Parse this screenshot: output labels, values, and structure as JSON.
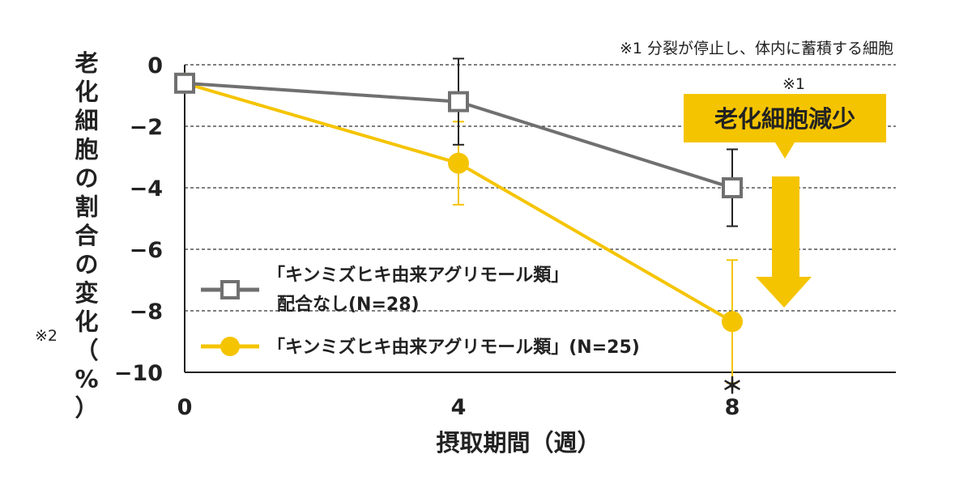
{
  "chart_data": {
    "type": "line",
    "title": "",
    "xlabel": "摂取期間（週）",
    "ylabel": "老化細胞の割合の変化（%）",
    "ylabel_note": "※2",
    "x": [
      0,
      4,
      8
    ],
    "x_tick_labels": [
      "0",
      "4",
      "8"
    ],
    "xlim": [
      0,
      10.5
    ],
    "ylim": [
      -10,
      0
    ],
    "y_ticks": [
      0,
      -2,
      -4,
      -6,
      -8,
      -10
    ],
    "y_tick_labels": [
      "0",
      "−2",
      "−4",
      "−6",
      "−8",
      "−10"
    ],
    "grid": true,
    "series": [
      {
        "name": "「キンミズヒキ由来アグリモール類」配合なし(N=28)",
        "legend_line1": "「キンミズヒキ由来アグリモール類」",
        "legend_line2": "配合なし(N=28)",
        "color": "#707070",
        "marker": "square",
        "values": [
          -0.6,
          -1.2,
          -4.0
        ],
        "error": [
          0,
          1.4,
          1.25
        ]
      },
      {
        "name": "「キンミズヒキ由来アグリモール類」(N=25)",
        "legend_line1": "「キンミズヒキ由来アグリモール類」(N=25)",
        "color": "#f5c400",
        "marker": "circle",
        "values": [
          -0.6,
          -3.2,
          -8.35
        ],
        "error": [
          0,
          1.35,
          2.0
        ]
      }
    ],
    "significance_marker": "＊",
    "legend_position": "bottom-left",
    "annotations": {
      "footnote": "※1  分裂が停止し、体内に蓄積する細胞",
      "callout_note": "※1",
      "callout_label": "老化細胞減少",
      "callout_color": "#f5c400"
    }
  }
}
